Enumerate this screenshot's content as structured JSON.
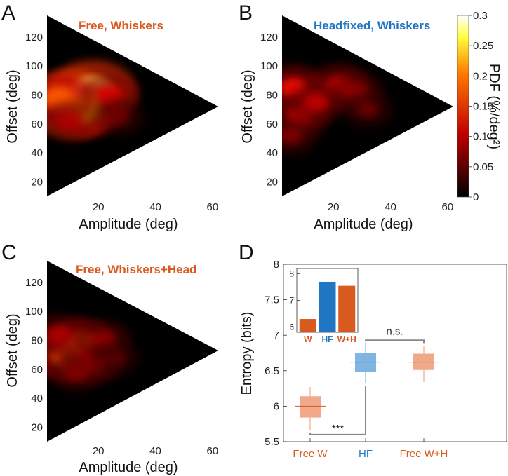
{
  "figure": {
    "panel_letters": [
      "A",
      "B",
      "C",
      "D"
    ]
  },
  "colors": {
    "free": "#d95a1e",
    "headfixed": "#1f77c4",
    "free_box": "#f0a98a",
    "hf_box": "#7fb5e0"
  },
  "chart_data": [
    {
      "type": "heatmap",
      "panel": "A",
      "title": "Free, Whiskers",
      "xlabel": "Amplitude (deg)",
      "ylabel": "Offset (deg)",
      "xticks": [
        "20",
        "40",
        "60"
      ],
      "yticks": [
        "20",
        "40",
        "60",
        "80",
        "100",
        "120"
      ],
      "xlim": [
        2,
        62
      ],
      "ylim": [
        10,
        135
      ],
      "colormap": "hot",
      "blobs": [
        {
          "x": 11,
          "y": 74,
          "intensity": 0.3
        },
        {
          "x": 18,
          "y": 82,
          "intensity": 0.27
        },
        {
          "x": 15,
          "y": 70,
          "intensity": 0.2
        },
        {
          "x": 6,
          "y": 78,
          "intensity": 0.16
        },
        {
          "x": 24,
          "y": 80,
          "intensity": 0.1
        },
        {
          "x": 10,
          "y": 62,
          "intensity": 0.08
        },
        {
          "x": 27,
          "y": 65,
          "intensity": 0.05
        }
      ]
    },
    {
      "type": "heatmap",
      "panel": "B",
      "title": "Headfixed, Whiskers",
      "xlabel": "Amplitude (deg)",
      "ylabel": "Offset (deg)",
      "xticks": [
        "20",
        "40",
        "60"
      ],
      "yticks": [
        "20",
        "40",
        "60",
        "80",
        "100",
        "120"
      ],
      "xlim": [
        2,
        62
      ],
      "ylim": [
        10,
        135
      ],
      "colormap": "hot",
      "colorbar": {
        "label": "PDF (%/deg²)",
        "ticks": [
          "0",
          "0.05",
          "0.1",
          "0.15",
          "0.2",
          "0.25",
          "0.3"
        ],
        "range": [
          0,
          0.3
        ]
      },
      "blobs": [
        {
          "x": 6,
          "y": 85,
          "intensity": 0.12
        },
        {
          "x": 22,
          "y": 86,
          "intensity": 0.11
        },
        {
          "x": 8,
          "y": 65,
          "intensity": 0.1
        },
        {
          "x": 14,
          "y": 75,
          "intensity": 0.09
        },
        {
          "x": 28,
          "y": 82,
          "intensity": 0.07
        },
        {
          "x": 5,
          "y": 52,
          "intensity": 0.06
        },
        {
          "x": 32,
          "y": 70,
          "intensity": 0.05
        }
      ]
    },
    {
      "type": "heatmap",
      "panel": "C",
      "title": "Free, Whiskers+Head",
      "xlabel": "Amplitude (deg)",
      "ylabel": "Offset (deg)",
      "xticks": [
        "20",
        "40",
        "60"
      ],
      "yticks": [
        "20",
        "40",
        "60",
        "80",
        "100",
        "120"
      ],
      "xlim": [
        2,
        62
      ],
      "ylim": [
        10,
        135
      ],
      "colormap": "hot",
      "blobs": [
        {
          "x": 9,
          "y": 70,
          "intensity": 0.17
        },
        {
          "x": 14,
          "y": 78,
          "intensity": 0.15
        },
        {
          "x": 18,
          "y": 65,
          "intensity": 0.1
        },
        {
          "x": 6,
          "y": 84,
          "intensity": 0.08
        },
        {
          "x": 22,
          "y": 80,
          "intensity": 0.07
        },
        {
          "x": 12,
          "y": 58,
          "intensity": 0.06
        },
        {
          "x": 26,
          "y": 68,
          "intensity": 0.04
        }
      ]
    },
    {
      "type": "box",
      "panel": "D",
      "ylabel": "Entropy (bits)",
      "ylim": [
        5.5,
        8
      ],
      "yticks": [
        "5.5",
        "6",
        "6.5",
        "7",
        "7.5",
        "8"
      ],
      "categories": [
        "Free W",
        "HF",
        "Free W+H"
      ],
      "boxes": [
        {
          "category": "Free W",
          "median": 6.0,
          "q1": 5.84,
          "q3": 6.14,
          "whisker_low": 5.66,
          "whisker_high": 6.27,
          "color": "free"
        },
        {
          "category": "HF",
          "median": 6.62,
          "q1": 6.48,
          "q3": 6.75,
          "whisker_low": 6.32,
          "whisker_high": 6.9,
          "color": "headfixed"
        },
        {
          "category": "Free W+H",
          "median": 6.62,
          "q1": 6.51,
          "q3": 6.74,
          "whisker_low": 6.34,
          "whisker_high": 6.85,
          "color": "free"
        }
      ],
      "significance": [
        {
          "label": "***",
          "between": [
            "Free W",
            "HF"
          ]
        },
        {
          "label": "n.s.",
          "between": [
            "HF",
            "Free W+H"
          ]
        }
      ],
      "inset": {
        "type": "bar",
        "categories": [
          "W",
          "HF",
          "W+H"
        ],
        "values": [
          6.3,
          7.7,
          7.55
        ],
        "ylim": [
          5.8,
          8.2
        ],
        "yticks": [
          "6",
          "7",
          "8"
        ],
        "colors": [
          "free",
          "headfixed",
          "free"
        ]
      }
    }
  ]
}
